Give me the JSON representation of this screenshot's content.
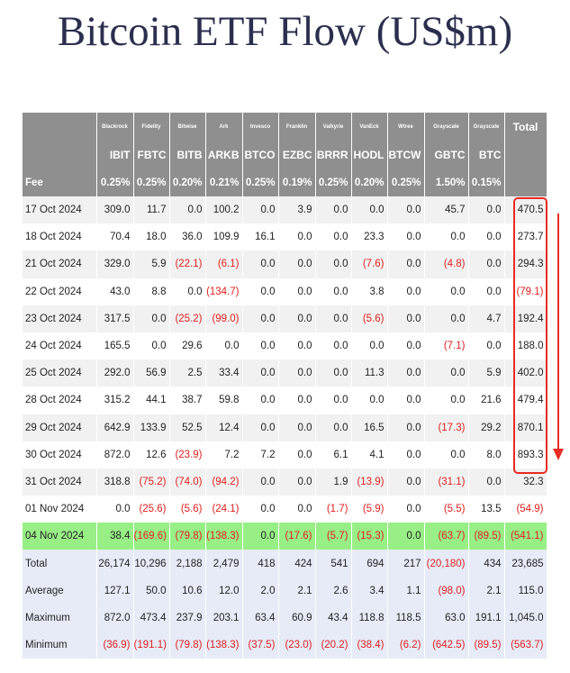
{
  "header": {
    "title": "Bitcoin ETF Flow (US$m)"
  },
  "table": {
    "issuers": [
      "Blackrock",
      "Fidelity",
      "Bitwise",
      "Ark",
      "Invesco",
      "Franklin",
      "Valkyrie",
      "VanEck",
      "Wtree",
      "Grayscale",
      "Grayscale"
    ],
    "total_header": "Total",
    "tickers": [
      "IBIT",
      "FBTC",
      "BITB",
      "ARKB",
      "BTCO",
      "EZBC",
      "BRRR",
      "HODL",
      "BTCW",
      "GBTC",
      "BTC"
    ],
    "fee_label": "Fee",
    "fees": [
      "0.25%",
      "0.25%",
      "0.20%",
      "0.21%",
      "0.25%",
      "0.19%",
      "0.25%",
      "0.20%",
      "0.25%",
      "1.50%",
      "0.15%"
    ],
    "rows": [
      [
        "17 Oct 2024",
        "309.0",
        "11.7",
        "0.0",
        "100.2",
        "0.0",
        "3.9",
        "0.0",
        "0.0",
        "0.0",
        "45.7",
        "0.0",
        "470.5"
      ],
      [
        "18 Oct 2024",
        "70.4",
        "18.0",
        "36.0",
        "109.9",
        "16.1",
        "0.0",
        "0.0",
        "23.3",
        "0.0",
        "0.0",
        "0.0",
        "273.7"
      ],
      [
        "21 Oct 2024",
        "329.0",
        "5.9",
        "(22.1)",
        "(6.1)",
        "0.0",
        "0.0",
        "0.0",
        "(7.6)",
        "0.0",
        "(4.8)",
        "0.0",
        "294.3"
      ],
      [
        "22 Oct 2024",
        "43.0",
        "8.8",
        "0.0",
        "(134.7)",
        "0.0",
        "0.0",
        "0.0",
        "3.8",
        "0.0",
        "0.0",
        "0.0",
        "(79.1)"
      ],
      [
        "23 Oct 2024",
        "317.5",
        "0.0",
        "(25.2)",
        "(99.0)",
        "0.0",
        "0.0",
        "0.0",
        "(5.6)",
        "0.0",
        "0.0",
        "4.7",
        "192.4"
      ],
      [
        "24 Oct 2024",
        "165.5",
        "0.0",
        "29.6",
        "0.0",
        "0.0",
        "0.0",
        "0.0",
        "0.0",
        "0.0",
        "(7.1)",
        "0.0",
        "188.0"
      ],
      [
        "25 Oct 2024",
        "292.0",
        "56.9",
        "2.5",
        "33.4",
        "0.0",
        "0.0",
        "0.0",
        "11.3",
        "0.0",
        "0.0",
        "5.9",
        "402.0"
      ],
      [
        "28 Oct 2024",
        "315.2",
        "44.1",
        "38.7",
        "59.8",
        "0.0",
        "0.0",
        "0.0",
        "0.0",
        "0.0",
        "0.0",
        "21.6",
        "479.4"
      ],
      [
        "29 Oct 2024",
        "642.9",
        "133.9",
        "52.5",
        "12.4",
        "0.0",
        "0.0",
        "0.0",
        "16.5",
        "0.0",
        "(17.3)",
        "29.2",
        "870.1"
      ],
      [
        "30 Oct 2024",
        "872.0",
        "12.6",
        "(23.9)",
        "7.2",
        "7.2",
        "0.0",
        "6.1",
        "4.1",
        "0.0",
        "0.0",
        "8.0",
        "893.3"
      ],
      [
        "31 Oct 2024",
        "318.8",
        "(75.2)",
        "(74.0)",
        "(94.2)",
        "0.0",
        "0.0",
        "1.9",
        "(13.9)",
        "0.0",
        "(31.1)",
        "0.0",
        "32.3"
      ],
      [
        "01 Nov 2024",
        "0.0",
        "(25.6)",
        "(5.6)",
        "(24.1)",
        "0.0",
        "0.0",
        "(1.7)",
        "(5.9)",
        "0.0",
        "(5.5)",
        "13.5",
        "(54.9)"
      ],
      [
        "04 Nov 2024",
        "38.4",
        "(169.6)",
        "(79.8)",
        "(138.3)",
        "0.0",
        "(17.6)",
        "(5.7)",
        "(15.3)",
        "0.0",
        "(63.7)",
        "(89.5)",
        "(541.1)"
      ],
      [
        "Total",
        "26,174",
        "10,296",
        "2,188",
        "2,479",
        "418",
        "424",
        "541",
        "694",
        "217",
        "(20,180)",
        "434",
        "23,685"
      ],
      [
        "Average",
        "127.1",
        "50.0",
        "10.6",
        "12.0",
        "2.0",
        "2.1",
        "2.6",
        "3.4",
        "1.1",
        "(98.0)",
        "2.1",
        "115.0"
      ],
      [
        "Maximum",
        "872.0",
        "473.4",
        "237.9",
        "203.1",
        "63.4",
        "60.9",
        "43.4",
        "118.8",
        "118.5",
        "63.0",
        "191.1",
        "1,045.0"
      ],
      [
        "Minimum",
        "(36.9)",
        "(191.1)",
        "(79.8)",
        "(138.3)",
        "(37.5)",
        "(23.0)",
        "(20.2)",
        "(38.4)",
        "(6.2)",
        "(642.5)",
        "(89.5)",
        "(563.7)"
      ]
    ]
  }
}
